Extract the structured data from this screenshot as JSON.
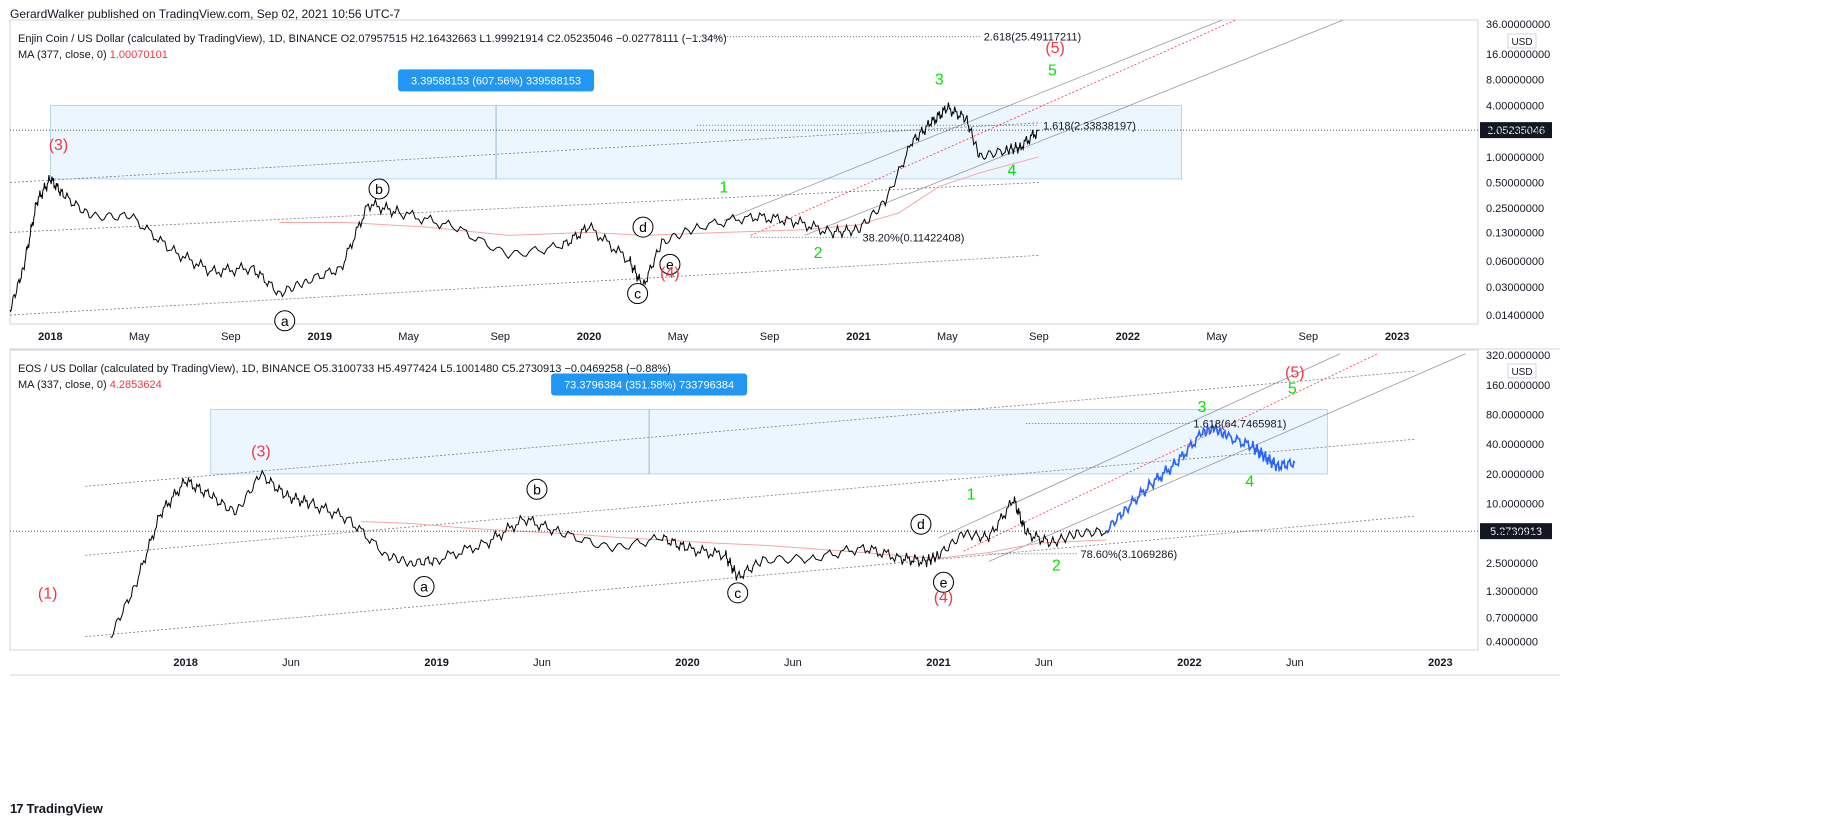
{
  "header": "GerardWalker published on TradingView.com, Sep 02, 2021 10:56 UTC-7",
  "footer": {
    "brand": "TradingView",
    "logo": "tradingview-logo-icon"
  },
  "chart_data": [
    {
      "type": "line",
      "scale": "log",
      "symbol_info": "Enjin Coin / US Dollar (calculated by TradingView), 1D, BINANCE  O2.07957515  H2.16432663  L1.99921914  C2.05235046  −0.02778111 (−1.34%)",
      "ma_label": "MA (377, close, 0)",
      "ma_value": "1.00070101",
      "currency": "USD",
      "last_price": "2.05235046",
      "price_ticks": [
        "36.00000000",
        "16.00000000",
        "8.00000000",
        "4.00000000",
        "2.00000000",
        "1.00000000",
        "0.50000000",
        "0.25000000",
        "0.13000000",
        "0.06000000",
        "0.03000000",
        "0.01400000"
      ],
      "price_tick_values": [
        36,
        16,
        8,
        4,
        2,
        1,
        0.5,
        0.25,
        0.13,
        0.06,
        0.03,
        0.014
      ],
      "time_ticks": [
        "2018",
        "May",
        "Sep",
        "2019",
        "May",
        "Sep",
        "2020",
        "May",
        "Sep",
        "2021",
        "May",
        "Sep",
        "2022",
        "May",
        "Sep",
        "2023"
      ],
      "time_tick_values": [
        2018.0,
        2018.33,
        2018.67,
        2019.0,
        2019.33,
        2019.67,
        2020.0,
        2020.33,
        2020.67,
        2021.0,
        2021.33,
        2021.67,
        2022.0,
        2022.33,
        2022.67,
        2023.0
      ],
      "price_path": [
        [
          2017.85,
          0.016
        ],
        [
          2017.9,
          0.05
        ],
        [
          2017.95,
          0.3
        ],
        [
          2018.0,
          0.55
        ],
        [
          2018.05,
          0.35
        ],
        [
          2018.15,
          0.2
        ],
        [
          2018.3,
          0.2
        ],
        [
          2018.45,
          0.08
        ],
        [
          2018.6,
          0.045
        ],
        [
          2018.75,
          0.05
        ],
        [
          2018.85,
          0.025
        ],
        [
          2018.95,
          0.035
        ],
        [
          2019.08,
          0.05
        ],
        [
          2019.18,
          0.28
        ],
        [
          2019.3,
          0.22
        ],
        [
          2019.5,
          0.15
        ],
        [
          2019.7,
          0.07
        ],
        [
          2019.9,
          0.09
        ],
        [
          2020.0,
          0.15
        ],
        [
          2020.15,
          0.06
        ],
        [
          2020.2,
          0.03
        ],
        [
          2020.27,
          0.1
        ],
        [
          2020.4,
          0.15
        ],
        [
          2020.6,
          0.2
        ],
        [
          2020.75,
          0.18
        ],
        [
          2020.9,
          0.13
        ],
        [
          2021.0,
          0.14
        ],
        [
          2021.1,
          0.3
        ],
        [
          2021.2,
          1.5
        ],
        [
          2021.27,
          2.5
        ],
        [
          2021.33,
          3.7
        ],
        [
          2021.4,
          2.8
        ],
        [
          2021.45,
          1.0
        ],
        [
          2021.55,
          1.2
        ],
        [
          2021.6,
          1.3
        ],
        [
          2021.67,
          2.05
        ]
      ],
      "ma_path": [
        [
          2018.85,
          0.17
        ],
        [
          2019.1,
          0.17
        ],
        [
          2019.4,
          0.15
        ],
        [
          2019.7,
          0.12
        ],
        [
          2020.0,
          0.13
        ],
        [
          2020.2,
          0.12
        ],
        [
          2020.5,
          0.13
        ],
        [
          2020.8,
          0.14
        ],
        [
          2021.0,
          0.16
        ],
        [
          2021.15,
          0.22
        ],
        [
          2021.3,
          0.45
        ],
        [
          2021.45,
          0.65
        ],
        [
          2021.67,
          1.0
        ]
      ],
      "measure_box": {
        "label": "3.39588153 (607.56%) 339588153",
        "x0": 2018.0,
        "x1": 2022.2,
        "y0": 0.55,
        "y1": 4.0
      },
      "fib_levels": [
        {
          "label": "2.618(25.49117211)",
          "value": 25.49,
          "x0": 2020.4,
          "x1": 2021.45
        },
        {
          "label": "1.618(2.33838197)",
          "value": 2.34,
          "x0": 2020.4,
          "x1": 2021.67
        },
        {
          "label": "38.20%(0.11422408)",
          "value": 0.114,
          "x0": 2020.6,
          "x1": 2021.0
        }
      ],
      "wave_labels": [
        {
          "text": "(3)",
          "x": 2018.03,
          "y": 1.2,
          "color": "#f23645"
        },
        {
          "text": "b",
          "x": 2019.22,
          "y": 0.42,
          "color": "#000000",
          "circled": true
        },
        {
          "text": "a",
          "x": 2018.87,
          "y": 0.012,
          "color": "#000000",
          "circled": true
        },
        {
          "text": "d",
          "x": 2020.2,
          "y": 0.15,
          "color": "#000000",
          "circled": true
        },
        {
          "text": "e",
          "x": 2020.3,
          "y": 0.055,
          "color": "#000000",
          "circled": true
        },
        {
          "text": "c",
          "x": 2020.18,
          "y": 0.025,
          "color": "#000000",
          "circled": true
        },
        {
          "text": "(4)",
          "x": 2020.3,
          "y": 0.038,
          "color": "#f23645"
        },
        {
          "text": "1",
          "x": 2020.5,
          "y": 0.38,
          "color": "#00e600"
        },
        {
          "text": "2",
          "x": 2020.85,
          "y": 0.065,
          "color": "#00e600"
        },
        {
          "text": "3",
          "x": 2021.3,
          "y": 7.0,
          "color": "#00e600"
        },
        {
          "text": "4",
          "x": 2021.57,
          "y": 0.6,
          "color": "#00e600"
        },
        {
          "text": "5",
          "x": 2021.72,
          "y": 9.0,
          "color": "#00e600"
        },
        {
          "text": "(5)",
          "x": 2021.73,
          "y": 16.5,
          "color": "#f23645"
        }
      ]
    },
    {
      "type": "line",
      "scale": "log",
      "symbol_info": "EOS / US Dollar (calculated by TradingView), 1D, BINANCE  O5.3100733  H5.4977424  L5.1001480  C5.2730913  −0.0469258 (−0.88%)",
      "ma_label": "MA (337, close, 0)",
      "ma_value": "4.2853624",
      "currency": "USD",
      "last_price": "5.2730913",
      "price_ticks": [
        "320.0000000",
        "160.0000000",
        "80.0000000",
        "40.0000000",
        "20.0000000",
        "10.0000000",
        "5.0000000",
        "2.5000000",
        "1.3000000",
        "0.7000000",
        "0.4000000"
      ],
      "price_tick_values": [
        320,
        160,
        80,
        40,
        20,
        10,
        5,
        2.5,
        1.3,
        0.7,
        0.4
      ],
      "time_ticks": [
        "2018",
        "Jun",
        "2019",
        "Jun",
        "2020",
        "Jun",
        "2021",
        "Jun",
        "2022",
        "Jun",
        "2023"
      ],
      "time_tick_values": [
        2018.0,
        2018.42,
        2019.0,
        2019.42,
        2020.0,
        2020.42,
        2021.0,
        2021.42,
        2022.0,
        2022.42,
        2023.0
      ],
      "price_path": [
        [
          2017.7,
          0.45
        ],
        [
          2017.8,
          1.5
        ],
        [
          2017.9,
          8.0
        ],
        [
          2018.0,
          17.0
        ],
        [
          2018.1,
          12.0
        ],
        [
          2018.2,
          8.0
        ],
        [
          2018.3,
          20.0
        ],
        [
          2018.4,
          12.0
        ],
        [
          2018.5,
          10.0
        ],
        [
          2018.65,
          7.0
        ],
        [
          2018.8,
          3.0
        ],
        [
          2018.9,
          2.5
        ],
        [
          2019.0,
          2.7
        ],
        [
          2019.2,
          4.0
        ],
        [
          2019.35,
          7.0
        ],
        [
          2019.5,
          5.0
        ],
        [
          2019.7,
          3.5
        ],
        [
          2019.9,
          4.5
        ],
        [
          2020.0,
          3.5
        ],
        [
          2020.15,
          3.0
        ],
        [
          2020.2,
          1.8
        ],
        [
          2020.3,
          2.7
        ],
        [
          2020.5,
          2.8
        ],
        [
          2020.7,
          3.6
        ],
        [
          2020.85,
          2.8
        ],
        [
          2020.95,
          2.6
        ],
        [
          2021.0,
          3.0
        ],
        [
          2021.1,
          5.0
        ],
        [
          2021.2,
          4.5
        ],
        [
          2021.3,
          11.0
        ],
        [
          2021.35,
          5.0
        ],
        [
          2021.45,
          4.0
        ],
        [
          2021.55,
          5.0
        ],
        [
          2021.67,
          5.27
        ]
      ],
      "projection_path": [
        [
          2021.67,
          5.4
        ],
        [
          2021.75,
          9.0
        ],
        [
          2021.85,
          16.0
        ],
        [
          2021.95,
          26.0
        ],
        [
          2022.05,
          52.0
        ],
        [
          2022.1,
          58.0
        ],
        [
          2022.15,
          48.0
        ],
        [
          2022.25,
          38.0
        ],
        [
          2022.3,
          30.0
        ],
        [
          2022.35,
          24.0
        ],
        [
          2022.42,
          26.0
        ]
      ],
      "ma_path": [
        [
          2018.7,
          6.6
        ],
        [
          2018.9,
          6.3
        ],
        [
          2019.1,
          5.7
        ],
        [
          2019.3,
          5.3
        ],
        [
          2019.5,
          5.0
        ],
        [
          2019.7,
          4.6
        ],
        [
          2019.9,
          4.3
        ],
        [
          2020.1,
          4.0
        ],
        [
          2020.3,
          3.8
        ],
        [
          2020.5,
          3.5
        ],
        [
          2020.7,
          3.2
        ],
        [
          2020.9,
          2.9
        ],
        [
          2021.0,
          2.8
        ],
        [
          2021.2,
          3.2
        ],
        [
          2021.4,
          4.0
        ],
        [
          2021.67,
          4.3
        ]
      ],
      "measure_box": {
        "label": "73.3796384 (351.58%) 733796384",
        "x0": 2018.1,
        "x1": 2022.55,
        "y0": 20.0,
        "y1": 90.0
      },
      "fib_levels": [
        {
          "label": "1.618(64.7465981)",
          "value": 64.75,
          "x0": 2021.35,
          "x1": 2022.0
        },
        {
          "label": "78.60%(3.1069286)",
          "value": 3.107,
          "x0": 2021.2,
          "x1": 2021.55
        }
      ],
      "wave_labels": [
        {
          "text": "(1)",
          "x": 2017.45,
          "y": 1.1,
          "color": "#f23645"
        },
        {
          "text": "(3)",
          "x": 2018.3,
          "y": 30.0,
          "color": "#f23645"
        },
        {
          "text": "a",
          "x": 2018.95,
          "y": 1.45,
          "color": "#000000",
          "circled": true
        },
        {
          "text": "b",
          "x": 2019.4,
          "y": 14.0,
          "color": "#000000",
          "circled": true
        },
        {
          "text": "c",
          "x": 2020.2,
          "y": 1.25,
          "color": "#000000",
          "circled": true
        },
        {
          "text": "d",
          "x": 2020.93,
          "y": 6.2,
          "color": "#000000",
          "circled": true
        },
        {
          "text": "e",
          "x": 2021.02,
          "y": 1.6,
          "color": "#000000",
          "circled": true
        },
        {
          "text": "(4)",
          "x": 2021.02,
          "y": 1.0,
          "color": "#f23645"
        },
        {
          "text": "1",
          "x": 2021.13,
          "y": 11.0,
          "color": "#00e600"
        },
        {
          "text": "2",
          "x": 2021.47,
          "y": 2.1,
          "color": "#00e600"
        },
        {
          "text": "3",
          "x": 2022.05,
          "y": 85.0,
          "color": "#00e600"
        },
        {
          "text": "4",
          "x": 2022.24,
          "y": 15.0,
          "color": "#00e600"
        },
        {
          "text": "5",
          "x": 2022.41,
          "y": 130.0,
          "color": "#00e600"
        },
        {
          "text": "(5)",
          "x": 2022.42,
          "y": 190.0,
          "color": "#f23645"
        }
      ]
    }
  ]
}
